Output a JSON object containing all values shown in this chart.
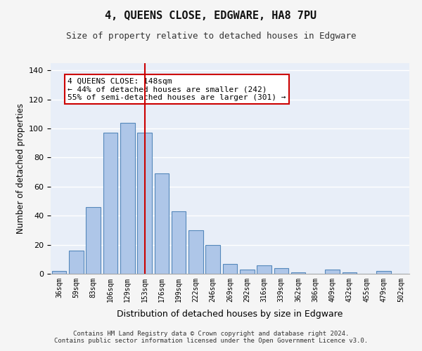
{
  "title": "4, QUEENS CLOSE, EDGWARE, HA8 7PU",
  "subtitle": "Size of property relative to detached houses in Edgware",
  "xlabel": "Distribution of detached houses by size in Edgware",
  "ylabel": "Number of detached properties",
  "categories": [
    "36sqm",
    "59sqm",
    "83sqm",
    "106sqm",
    "129sqm",
    "153sqm",
    "176sqm",
    "199sqm",
    "222sqm",
    "246sqm",
    "269sqm",
    "292sqm",
    "316sqm",
    "339sqm",
    "362sqm",
    "386sqm",
    "409sqm",
    "432sqm",
    "455sqm",
    "479sqm",
    "502sqm"
  ],
  "values": [
    2,
    16,
    46,
    97,
    104,
    97,
    69,
    43,
    30,
    20,
    7,
    3,
    6,
    4,
    1,
    0,
    3,
    1,
    0,
    2,
    0
  ],
  "bar_color": "#aec6e8",
  "bar_edgecolor": "#5588bb",
  "background_color": "#e8eef8",
  "grid_color": "#ffffff",
  "vline_x": 5,
  "vline_color": "#cc0000",
  "annotation_text": "4 QUEENS CLOSE: 148sqm\n← 44% of detached houses are smaller (242)\n55% of semi-detached houses are larger (301) →",
  "annotation_box_color": "#ffffff",
  "annotation_box_edgecolor": "#cc0000",
  "ylim": [
    0,
    145
  ],
  "yticks": [
    0,
    20,
    40,
    60,
    80,
    100,
    120,
    140
  ],
  "footer_line1": "Contains HM Land Registry data © Crown copyright and database right 2024.",
  "footer_line2": "Contains public sector information licensed under the Open Government Licence v3.0."
}
